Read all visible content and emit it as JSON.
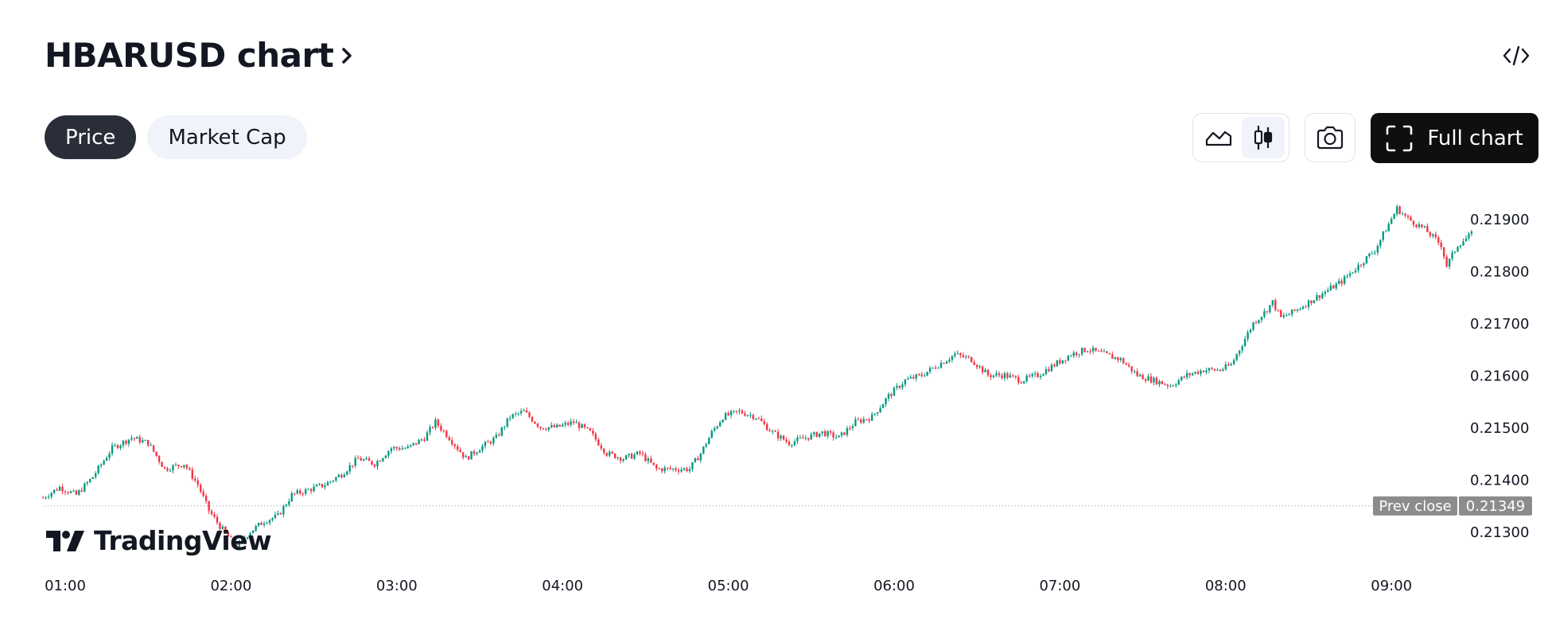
{
  "header": {
    "title": "HBARUSD chart"
  },
  "tabs": [
    {
      "label": "Price",
      "active": true
    },
    {
      "label": "Market Cap",
      "active": false
    }
  ],
  "toolbar": {
    "full_chart_label": "Full chart",
    "chart_type_selected": "candles",
    "icons": [
      "area-chart-icon",
      "candles-icon",
      "camera-icon",
      "fullscreen-icon",
      "embed-code-icon"
    ]
  },
  "branding": {
    "logo_text": "TradingView"
  },
  "colors": {
    "up": "#089981",
    "down": "#f23645",
    "prev_close_badge": "#8c8c8c",
    "text": "#131722"
  },
  "chart_data": {
    "type": "candlestick",
    "symbol": "HBARUSD",
    "x_ticks": [
      "01:00",
      "02:00",
      "03:00",
      "04:00",
      "05:00",
      "06:00",
      "07:00",
      "08:00",
      "09:00"
    ],
    "y_ticks": [
      "0.21900",
      "0.21800",
      "0.21700",
      "0.21600",
      "0.21500",
      "0.21400",
      "0.21300"
    ],
    "ylim": [
      0.2124,
      0.2195
    ],
    "time_range": [
      "00:52",
      "09:29"
    ],
    "prev_close": {
      "label": "Prev close",
      "value": "0.21349"
    },
    "price_path": [
      [
        "00:52",
        0.21365
      ],
      [
        "00:58",
        0.21385
      ],
      [
        "01:04",
        0.2137
      ],
      [
        "01:10",
        0.21405
      ],
      [
        "01:17",
        0.2146
      ],
      [
        "01:24",
        0.2148
      ],
      [
        "01:30",
        0.2147
      ],
      [
        "01:36",
        0.2142
      ],
      [
        "01:43",
        0.2143
      ],
      [
        "01:48",
        0.2139
      ],
      [
        "01:52",
        0.2134
      ],
      [
        "01:56",
        0.2131
      ],
      [
        "02:02",
        0.2127
      ],
      [
        "02:07",
        0.213
      ],
      [
        "02:12",
        0.2132
      ],
      [
        "02:17",
        0.2133
      ],
      [
        "02:22",
        0.2137
      ],
      [
        "02:28",
        0.2138
      ],
      [
        "02:34",
        0.2139
      ],
      [
        "02:40",
        0.2141
      ],
      [
        "02:46",
        0.2144
      ],
      [
        "02:52",
        0.2143
      ],
      [
        "02:58",
        0.2146
      ],
      [
        "03:04",
        0.2146
      ],
      [
        "03:10",
        0.2148
      ],
      [
        "03:14",
        0.2151
      ],
      [
        "03:19",
        0.2148
      ],
      [
        "03:25",
        0.2144
      ],
      [
        "03:30",
        0.2146
      ],
      [
        "03:36",
        0.2148
      ],
      [
        "03:41",
        0.2152
      ],
      [
        "03:46",
        0.2153
      ],
      [
        "03:52",
        0.215
      ],
      [
        "03:58",
        0.215
      ],
      [
        "04:04",
        0.2151
      ],
      [
        "04:10",
        0.2149
      ],
      [
        "04:16",
        0.2145
      ],
      [
        "04:22",
        0.2144
      ],
      [
        "04:28",
        0.2145
      ],
      [
        "04:34",
        0.2142
      ],
      [
        "04:40",
        0.2142
      ],
      [
        "04:46",
        0.2142
      ],
      [
        "04:50",
        0.2145
      ],
      [
        "04:54",
        0.2149
      ],
      [
        "04:58",
        0.2152
      ],
      [
        "05:04",
        0.2153
      ],
      [
        "05:10",
        0.2152
      ],
      [
        "05:16",
        0.2149
      ],
      [
        "05:22",
        0.2147
      ],
      [
        "05:28",
        0.2148
      ],
      [
        "05:34",
        0.2149
      ],
      [
        "05:40",
        0.2148
      ],
      [
        "05:46",
        0.2151
      ],
      [
        "05:52",
        0.2152
      ],
      [
        "05:58",
        0.2156
      ],
      [
        "06:04",
        0.2159
      ],
      [
        "06:10",
        0.216
      ],
      [
        "06:16",
        0.2162
      ],
      [
        "06:22",
        0.2164
      ],
      [
        "06:28",
        0.2163
      ],
      [
        "06:34",
        0.216
      ],
      [
        "06:40",
        0.216
      ],
      [
        "06:46",
        0.2159
      ],
      [
        "06:52",
        0.216
      ],
      [
        "06:58",
        0.2162
      ],
      [
        "07:04",
        0.2164
      ],
      [
        "07:10",
        0.2165
      ],
      [
        "07:16",
        0.2164
      ],
      [
        "07:22",
        0.2163
      ],
      [
        "07:28",
        0.216
      ],
      [
        "07:34",
        0.2159
      ],
      [
        "07:40",
        0.2158
      ],
      [
        "07:46",
        0.216
      ],
      [
        "07:52",
        0.2161
      ],
      [
        "07:58",
        0.2161
      ],
      [
        "08:02",
        0.2162
      ],
      [
        "08:06",
        0.2166
      ],
      [
        "08:10",
        0.217
      ],
      [
        "08:14",
        0.2172
      ],
      [
        "08:17",
        0.2174
      ],
      [
        "08:20",
        0.2171
      ],
      [
        "08:24",
        0.2172
      ],
      [
        "08:30",
        0.2174
      ],
      [
        "08:36",
        0.2176
      ],
      [
        "08:42",
        0.2178
      ],
      [
        "08:48",
        0.2181
      ],
      [
        "08:54",
        0.2184
      ],
      [
        "08:58",
        0.2188
      ],
      [
        "09:02",
        0.2192
      ],
      [
        "09:06",
        0.219
      ],
      [
        "09:12",
        0.2188
      ],
      [
        "09:18",
        0.2185
      ],
      [
        "09:20",
        0.2181
      ],
      [
        "09:24",
        0.2185
      ],
      [
        "09:29",
        0.2187
      ]
    ],
    "candle_interval_minutes": 1,
    "candles_seed": 7
  }
}
